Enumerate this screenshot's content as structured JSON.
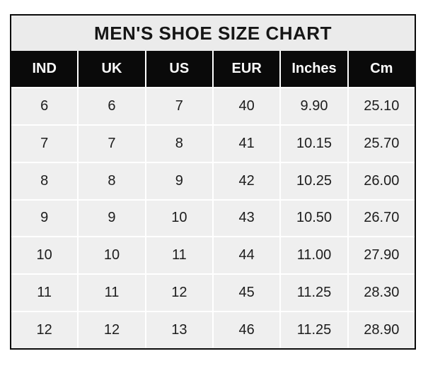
{
  "chart_data": {
    "type": "table",
    "title": "MEN'S SHOE SIZE CHART",
    "columns": [
      "IND",
      "UK",
      "US",
      "EUR",
      "Inches",
      "Cm"
    ],
    "rows": [
      [
        "6",
        "6",
        "7",
        "40",
        "9.90",
        "25.10"
      ],
      [
        "7",
        "7",
        "8",
        "41",
        "10.15",
        "25.70"
      ],
      [
        "8",
        "8",
        "9",
        "42",
        "10.25",
        "26.00"
      ],
      [
        "9",
        "9",
        "10",
        "43",
        "10.50",
        "26.70"
      ],
      [
        "10",
        "10",
        "11",
        "44",
        "11.00",
        "27.90"
      ],
      [
        "11",
        "11",
        "12",
        "45",
        "11.25",
        "28.30"
      ],
      [
        "12",
        "12",
        "13",
        "46",
        "11.25",
        "28.90"
      ]
    ]
  },
  "colors": {
    "header_background": "#0a0a0a",
    "header_text": "#fbfbfb",
    "title_background": "#ebebeb",
    "cell_background": "#efefef",
    "gutter": "#ffffff",
    "border": "#0a0a0a",
    "text": "#1d1d1d"
  }
}
